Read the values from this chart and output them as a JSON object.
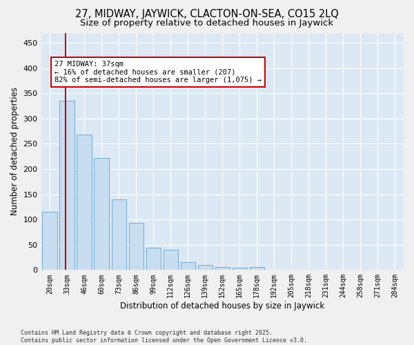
{
  "title1": "27, MIDWAY, JAYWICK, CLACTON-ON-SEA, CO15 2LQ",
  "title2": "Size of property relative to detached houses in Jaywick",
  "xlabel": "Distribution of detached houses by size in Jaywick",
  "ylabel": "Number of detached properties",
  "categories": [
    "20sqm",
    "33sqm",
    "46sqm",
    "60sqm",
    "73sqm",
    "86sqm",
    "99sqm",
    "112sqm",
    "126sqm",
    "139sqm",
    "152sqm",
    "165sqm",
    "178sqm",
    "192sqm",
    "205sqm",
    "218sqm",
    "231sqm",
    "244sqm",
    "258sqm",
    "271sqm",
    "284sqm"
  ],
  "values": [
    115,
    335,
    268,
    222,
    140,
    94,
    44,
    40,
    15,
    10,
    6,
    5,
    6,
    0,
    0,
    0,
    0,
    0,
    0,
    0,
    0
  ],
  "bar_color": "#c9ddf0",
  "bar_edge_color": "#6aaad4",
  "vline_x_idx": 1,
  "vline_color": "#c00000",
  "annotation_text": "27 MIDWAY: 37sqm\n← 16% of detached houses are smaller (207)\n82% of semi-detached houses are larger (1,075) →",
  "annotation_box_color": "#ffffff",
  "annotation_box_edge": "#cc0000",
  "ylim": [
    0,
    470
  ],
  "yticks": [
    0,
    50,
    100,
    150,
    200,
    250,
    300,
    350,
    400,
    450
  ],
  "footer1": "Contains HM Land Registry data © Crown copyright and database right 2025.",
  "footer2": "Contains public sector information licensed under the Open Government Licence v3.0.",
  "bg_color": "#dce9f5",
  "fig_bg_color": "#f0f0f0",
  "title_fontsize": 10.5,
  "subtitle_fontsize": 9.5,
  "bar_width": 0.85
}
